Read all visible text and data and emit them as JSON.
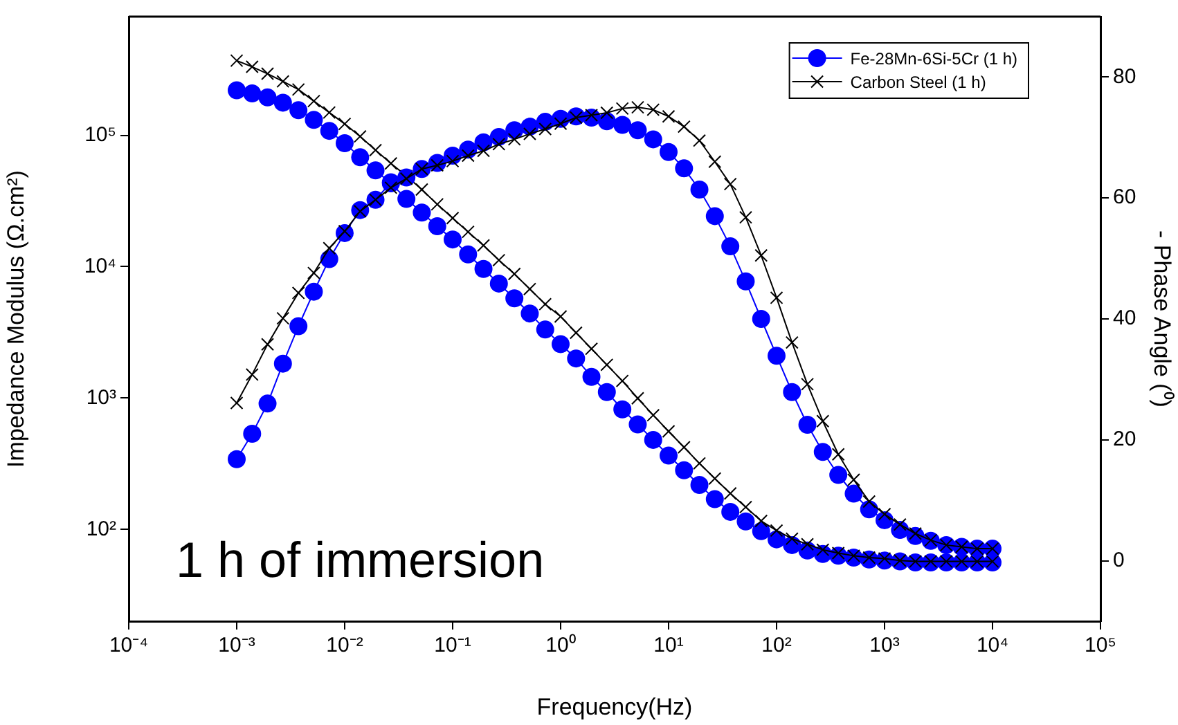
{
  "chart_data": {
    "type": "line",
    "xlabel": "Frequency(Hz)",
    "ylabel": "Impedance Modulus (Ω.cm²)",
    "y2label": "- Phase Angle (⁰)",
    "annotations": [
      "1 h of immersion"
    ],
    "log": "xy",
    "grid": false,
    "legend": "top right",
    "line_style": "solid",
    "xlim": [
      0.0001,
      100000
    ],
    "xticks": [
      {
        "value": 0.0001,
        "label": "10⁻⁴"
      },
      {
        "value": 0.001,
        "label": "10⁻³"
      },
      {
        "value": 0.01,
        "label": "10⁻²"
      },
      {
        "value": 0.1,
        "label": "10⁻¹"
      },
      {
        "value": 1,
        "label": "10⁰"
      },
      {
        "value": 10,
        "label": "10¹"
      },
      {
        "value": 100,
        "label": "10²"
      },
      {
        "value": 1000,
        "label": "10³"
      },
      {
        "value": 10000,
        "label": "10⁴"
      },
      {
        "value": 100000,
        "label": "10⁵"
      }
    ],
    "ylim": [
      20,
      800000
    ],
    "yticks": [
      {
        "value": 100,
        "label": "10²"
      },
      {
        "value": 1000,
        "label": "10³"
      },
      {
        "value": 10000,
        "label": "10⁴"
      },
      {
        "value": 100000,
        "label": "10⁵"
      }
    ],
    "y2lim": [
      -10,
      90
    ],
    "y2ticks": [
      0,
      20,
      40,
      60,
      80
    ],
    "x": [
      0.001,
      0.00139,
      0.00193,
      0.00268,
      0.00373,
      0.00518,
      0.0072,
      0.01,
      0.0139,
      0.0193,
      0.0268,
      0.0373,
      0.0518,
      0.072,
      0.1,
      0.139,
      0.193,
      0.268,
      0.373,
      0.518,
      0.72,
      1,
      1.39,
      1.93,
      2.68,
      3.73,
      5.18,
      7.2,
      10,
      13.9,
      19.3,
      26.8,
      37.3,
      51.8,
      72,
      100,
      139,
      193,
      268,
      373,
      518,
      720,
      1000,
      1390,
      1930,
      2680,
      3730,
      5180,
      7200,
      10000
    ],
    "series": [
      {
        "name": "Fe-28Mn-6Si-5Cr (1 h)",
        "color": "#0000ff",
        "marker": "circle",
        "values": [
          220000,
          208000,
          194000,
          177000,
          155000,
          131000,
          108000,
          87000,
          68000,
          54000,
          43000,
          32800,
          25800,
          20300,
          16100,
          12400,
          9600,
          7430,
          5740,
          4400,
          3320,
          2570,
          2000,
          1450,
          1110,
          820,
          630,
          480,
          365,
          282,
          218,
          170,
          136,
          115,
          97,
          84,
          76,
          69,
          65,
          63,
          61,
          59,
          58,
          57,
          56,
          56,
          56,
          56,
          56,
          56
        ]
      },
      {
        "name": "Carbon Steel (1 h)",
        "color": "#000000",
        "marker": "cross",
        "values": [
          370000,
          332000,
          294000,
          257000,
          223000,
          182000,
          149000,
          122000,
          98000,
          77000,
          61000,
          49000,
          38600,
          29800,
          23400,
          18400,
          14500,
          11200,
          8800,
          6750,
          5180,
          4170,
          3140,
          2370,
          1790,
          1350,
          995,
          740,
          558,
          422,
          318,
          244,
          188,
          148,
          116,
          98,
          85,
          77,
          70,
          66,
          63,
          61,
          60,
          58,
          57,
          57,
          57,
          57,
          57,
          57
        ]
      },
      {
        "color": "#0000ff",
        "marker": "circle",
        "axis": "y2",
        "values": [
          16.8,
          21.0,
          26.0,
          32.6,
          38.8,
          44.5,
          49.9,
          54.2,
          58.0,
          59.7,
          62.6,
          63.4,
          64.8,
          65.8,
          67.0,
          68.0,
          69.2,
          70.1,
          71.2,
          71.8,
          72.6,
          73.1,
          73.5,
          73.3,
          72.7,
          72.1,
          71.2,
          69.7,
          67.6,
          64.9,
          61.4,
          57.0,
          52.0,
          46.2,
          40.0,
          33.9,
          27.9,
          22.5,
          18.0,
          14.2,
          11.1,
          8.5,
          6.7,
          5.1,
          4.1,
          3.3,
          2.6,
          2.3,
          2.0,
          2.0
        ]
      },
      {
        "color": "#000000",
        "marker": "cross",
        "axis": "y2",
        "values": [
          26.1,
          30.8,
          35.8,
          40.1,
          44.3,
          47.6,
          51.7,
          54.5,
          57.8,
          59.7,
          61.7,
          63.2,
          64.8,
          65.4,
          66.1,
          67.0,
          67.8,
          68.9,
          69.7,
          70.6,
          71.4,
          72.3,
          73.3,
          73.7,
          74.1,
          74.8,
          75.0,
          74.6,
          73.5,
          71.8,
          69.5,
          66.0,
          62.3,
          56.8,
          50.5,
          43.5,
          36.1,
          29.2,
          23.1,
          17.6,
          13.4,
          9.8,
          7.7,
          6.0,
          4.5,
          3.4,
          2.6,
          2.3,
          2.0,
          2.0
        ]
      }
    ]
  }
}
